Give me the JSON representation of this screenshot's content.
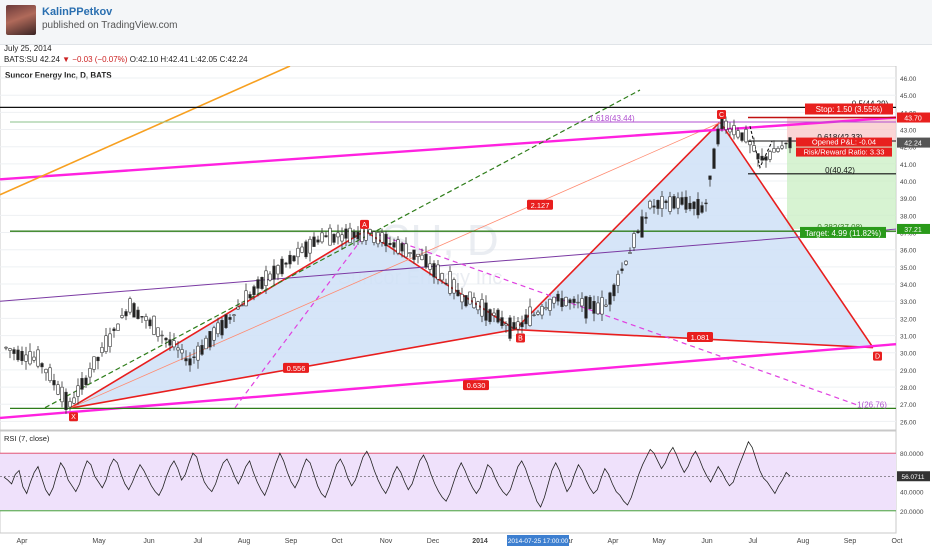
{
  "header": {
    "author": "KalinPPetkov",
    "published": "published on TradingView.com",
    "date": "July 25, 2014",
    "symbol": "BATS:SU",
    "last": "42.24",
    "change": "−0.03 (−0.07%)",
    "open": "O:42.10",
    "high": "H:42.41",
    "low": "L:42.05",
    "close": "C:42.24"
  },
  "chart_data": {
    "type": "line",
    "title": "Suncor Energy Inc, D, BATS",
    "watermark_big": "SU, D",
    "watermark_small": "Suncor Energy Inc",
    "colors": {
      "pattern_fill": "#cfe0f7",
      "pattern_line": "#e81e1e",
      "channel_magenta": "#ff22e0",
      "trend_orange": "#f7a020",
      "fib_green": "#2e7d1a",
      "purple": "#7b3aa3",
      "stop_zone": "#f9caca",
      "target_zone": "#c9efc3",
      "rsi_fill": "#efe1fb"
    },
    "price_axis": {
      "min": 25.5,
      "max": 46.7,
      "ticks": [
        "46.00",
        "45.00",
        "44.00",
        "43.00",
        "42.00",
        "41.00",
        "40.00",
        "39.00",
        "38.00",
        "37.00",
        "36.00",
        "35.00",
        "34.00",
        "33.00",
        "32.00",
        "31.00",
        "30.00",
        "29.00",
        "28.00",
        "27.00",
        "26.00"
      ]
    },
    "time_axis": {
      "labels": [
        "Apr",
        "May",
        "Jun",
        "Jul",
        "Aug",
        "Sep",
        "Oct",
        "Nov",
        "Dec",
        "2014",
        "Feb",
        "Mar",
        "Apr",
        "May",
        "Jun",
        "Jul",
        "Aug",
        "Sep",
        "Oct"
      ],
      "highlight": "2014-07-25 17:00:00"
    },
    "price_badges": {
      "stop": "43.70",
      "last": "42.24",
      "target": "37.21"
    },
    "pattern_points": [
      {
        "label": "X",
        "bar": 70,
        "price": 26.77
      },
      {
        "label": "A",
        "bar": 365,
        "price": 37.1
      },
      {
        "label": "B",
        "bar": 515,
        "price": 31.35
      },
      {
        "label": "C",
        "bar": 720,
        "price": 43.44
      },
      {
        "label": "D",
        "bar": 873,
        "price": 30.3
      }
    ],
    "pattern_ratios": [
      "0.556",
      "2.127",
      "1.081",
      "0.630"
    ],
    "fib_levels": [
      {
        "label": "0.5(44.29)",
        "price": 44.29
      },
      {
        "label": "1.618(43.44)",
        "price": 43.44
      },
      {
        "label": "0.618(42.33)",
        "price": 42.33
      },
      {
        "label": "0(40.42)",
        "price": 40.42
      },
      {
        "label": "0.382(37.08)",
        "price": 37.08
      },
      {
        "label": "1(26.76)",
        "price": 26.76
      }
    ],
    "position": {
      "stop": "Stop: 1.50 (3.55%)",
      "pnl": "Opened P&L: -0.04",
      "rr": "Risk/Reward Ratio: 3.33",
      "target": "Target: 4.99 (11.82%)"
    },
    "rsi": {
      "label": "RSI (7, close)",
      "levels": [
        80,
        20
      ],
      "ticks": [
        "80.0000",
        "40.0000",
        "20.0000"
      ],
      "last": "56.0711",
      "values": [
        55,
        52,
        48,
        58,
        62,
        45,
        38,
        50,
        60,
        66,
        54,
        42,
        36,
        44,
        58,
        70,
        64,
        52,
        46,
        40,
        48,
        62,
        72,
        68,
        56,
        50,
        44,
        52,
        66,
        74,
        70,
        58,
        48,
        42,
        50,
        60,
        68,
        62,
        54,
        46,
        40,
        36,
        44,
        56,
        66,
        72,
        64,
        52,
        58,
        70,
        80,
        76,
        62,
        50,
        44,
        40,
        48,
        60,
        70,
        74,
        66,
        56,
        48,
        56,
        66,
        72,
        60,
        50,
        42,
        36,
        46,
        58,
        70,
        80,
        72,
        60,
        50,
        44,
        52,
        64,
        74,
        70,
        58,
        46,
        38,
        34,
        44,
        56,
        68,
        74,
        66,
        54,
        46,
        52,
        64,
        76,
        82,
        74,
        62,
        52,
        44,
        38,
        46,
        58,
        66,
        60,
        50,
        42,
        48,
        60,
        72,
        78,
        70,
        58,
        48,
        40,
        34,
        30,
        38,
        50,
        62,
        70,
        62,
        52,
        44,
        38,
        44,
        56,
        68,
        64,
        54,
        46,
        40,
        36,
        42,
        54,
        66,
        72,
        64,
        52,
        42,
        30,
        24,
        34,
        48,
        62,
        70,
        62,
        50,
        40,
        46,
        58,
        68,
        62,
        52,
        44,
        38,
        42,
        54,
        64,
        58,
        48,
        40,
        36,
        30,
        26,
        34,
        46,
        58,
        68,
        76,
        84,
        80,
        72,
        64,
        70,
        80,
        86,
        78,
        68,
        60,
        66,
        76,
        82,
        74,
        64,
        56,
        50,
        58,
        66,
        60,
        52,
        46,
        50,
        62,
        72,
        82,
        92,
        86,
        74,
        62,
        54,
        50,
        44,
        38,
        46,
        52,
        60,
        56
      ]
    }
  }
}
